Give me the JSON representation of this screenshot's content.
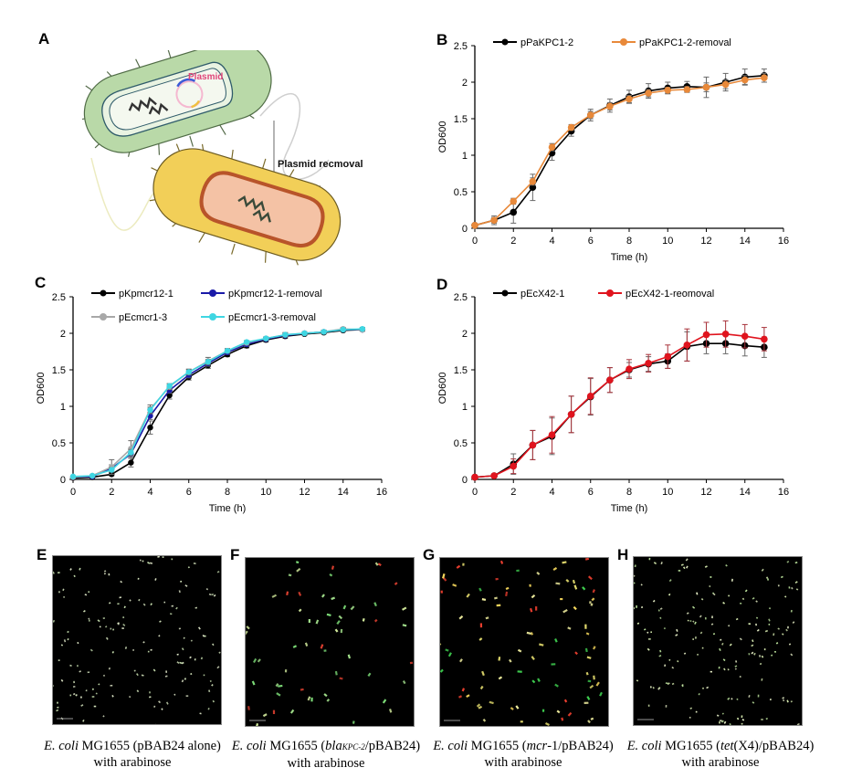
{
  "panel_letters": {
    "a": "A",
    "b": "B",
    "c": "C",
    "d": "D",
    "e": "E",
    "f": "F",
    "g": "G",
    "h": "H"
  },
  "schematic": {
    "plasmid_label": "Plasmid",
    "arrow_label": "Plasmid recmoval",
    "colors": {
      "donor_cell": "#b9d9a8",
      "cured_cell": "#f2cf58",
      "plasmid_text": "#e0457a",
      "cured_inner": "#f4c2a5",
      "cured_wall": "#b8542a"
    }
  },
  "chart_data": [
    {
      "id": "B",
      "type": "line",
      "title": "",
      "xlabel": "Time (h)",
      "ylabel": "OD600",
      "xlim": [
        0,
        16
      ],
      "ylim": [
        0,
        2.5
      ],
      "xticks": [
        "0",
        "2",
        "4",
        "6",
        "8",
        "10",
        "12",
        "14",
        "16"
      ],
      "yticks": [
        "0",
        "0.5",
        "1",
        "1.5",
        "2",
        "2.5"
      ],
      "grid": false,
      "legend": "top",
      "x": [
        0,
        1,
        2,
        3,
        4,
        5,
        6,
        7,
        8,
        9,
        10,
        11,
        12,
        13,
        14,
        15
      ],
      "series": [
        {
          "name": "pPaKPC1-2",
          "color": "#000000",
          "values": [
            0.04,
            0.11,
            0.22,
            0.56,
            1.03,
            1.33,
            1.55,
            1.68,
            1.8,
            1.88,
            1.92,
            1.94,
            1.93,
            2.0,
            2.07,
            2.09
          ],
          "errors": [
            0.02,
            0.06,
            0.15,
            0.18,
            0.1,
            0.07,
            0.08,
            0.09,
            0.09,
            0.1,
            0.08,
            0.07,
            0.14,
            0.12,
            0.11,
            0.09
          ]
        },
        {
          "name": "pPaKPC1-2-removal",
          "color": "#e8893a",
          "values": [
            0.04,
            0.11,
            0.37,
            0.64,
            1.11,
            1.38,
            1.55,
            1.67,
            1.77,
            1.85,
            1.89,
            1.9,
            1.93,
            1.97,
            2.03,
            2.06
          ],
          "errors": [
            0.02,
            0.04,
            0.04,
            0.05,
            0.05,
            0.04,
            0.05,
            0.05,
            0.05,
            0.05,
            0.04,
            0.04,
            0.06,
            0.06,
            0.06,
            0.06
          ]
        }
      ]
    },
    {
      "id": "C",
      "type": "line",
      "title": "",
      "xlabel": "Time (h)",
      "ylabel": "OD600",
      "xlim": [
        0,
        16
      ],
      "ylim": [
        0,
        2.5
      ],
      "xticks": [
        "0",
        "2",
        "4",
        "6",
        "8",
        "10",
        "12",
        "14",
        "16"
      ],
      "yticks": [
        "0",
        "0.5",
        "1",
        "1.5",
        "2",
        "2.5"
      ],
      "grid": false,
      "legend": "top",
      "x": [
        0,
        1,
        2,
        3,
        4,
        5,
        6,
        7,
        8,
        9,
        10,
        11,
        12,
        13,
        14,
        15
      ],
      "series": [
        {
          "name": "pKpmcr12-1",
          "color": "#000000",
          "values": [
            0.02,
            0.03,
            0.07,
            0.23,
            0.71,
            1.15,
            1.4,
            1.56,
            1.71,
            1.83,
            1.91,
            1.96,
            1.99,
            2.01,
            2.04,
            2.05
          ],
          "errors": [
            0.01,
            0.01,
            0.02,
            0.06,
            0.09,
            0.05,
            0.04,
            0.04,
            0.03,
            0.03,
            0.03,
            0.03,
            0.02,
            0.02,
            0.02,
            0.02
          ]
        },
        {
          "name": "pKpmcr12-1-removal",
          "color": "#1a1aa8",
          "values": [
            0.03,
            0.04,
            0.15,
            0.35,
            0.87,
            1.22,
            1.43,
            1.59,
            1.74,
            1.85,
            1.92,
            1.97,
            2.0,
            2.02,
            2.05,
            2.05
          ],
          "errors": [
            0.01,
            0.01,
            0.05,
            0.06,
            0.05,
            0.04,
            0.04,
            0.04,
            0.03,
            0.03,
            0.02,
            0.02,
            0.02,
            0.02,
            0.02,
            0.02
          ]
        },
        {
          "name": "pEcmcr1-3",
          "color": "#a8a8a8",
          "values": [
            0.03,
            0.05,
            0.17,
            0.42,
            0.96,
            1.27,
            1.47,
            1.62,
            1.76,
            1.87,
            1.93,
            1.98,
            2.0,
            2.02,
            2.06,
            2.05
          ],
          "errors": [
            0.01,
            0.01,
            0.1,
            0.11,
            0.06,
            0.04,
            0.04,
            0.05,
            0.03,
            0.03,
            0.02,
            0.03,
            0.02,
            0.02,
            0.02,
            0.02
          ]
        },
        {
          "name": "pEcmcr1-3-removal",
          "color": "#3fd6e2",
          "values": [
            0.04,
            0.05,
            0.13,
            0.37,
            0.95,
            1.28,
            1.47,
            1.61,
            1.76,
            1.88,
            1.93,
            1.98,
            2.0,
            2.02,
            2.05,
            2.06
          ],
          "errors": [
            0.01,
            0.01,
            0.03,
            0.04,
            0.04,
            0.03,
            0.03,
            0.03,
            0.03,
            0.02,
            0.02,
            0.02,
            0.02,
            0.02,
            0.02,
            0.02
          ]
        }
      ]
    },
    {
      "id": "D",
      "type": "line",
      "title": "",
      "xlabel": "Time (h)",
      "ylabel": "OD600",
      "xlim": [
        0,
        16
      ],
      "ylim": [
        0,
        2.5
      ],
      "xticks": [
        "0",
        "2",
        "4",
        "6",
        "8",
        "10",
        "12",
        "14",
        "16"
      ],
      "yticks": [
        "0",
        "0.5",
        "1",
        "1.5",
        "2",
        "2.5"
      ],
      "grid": false,
      "legend": "top",
      "x": [
        0,
        1,
        2,
        3,
        4,
        5,
        6,
        7,
        8,
        9,
        10,
        11,
        12,
        13,
        14,
        15
      ],
      "series": [
        {
          "name": "pEcX42-1",
          "color": "#000000",
          "values": [
            0.03,
            0.05,
            0.21,
            0.47,
            0.59,
            0.89,
            1.13,
            1.36,
            1.5,
            1.58,
            1.62,
            1.82,
            1.86,
            1.86,
            1.83,
            1.81
          ],
          "errors": [
            0.01,
            0.02,
            0.14,
            0.2,
            0.25,
            0.25,
            0.25,
            0.17,
            0.1,
            0.1,
            0.1,
            0.2,
            0.14,
            0.14,
            0.14,
            0.14
          ]
        },
        {
          "name": "pEcX42-1-reomoval",
          "color": "#e0141e",
          "values": [
            0.03,
            0.05,
            0.18,
            0.47,
            0.61,
            0.89,
            1.14,
            1.36,
            1.51,
            1.59,
            1.68,
            1.84,
            1.98,
            1.99,
            1.96,
            1.92
          ],
          "errors": [
            0.01,
            0.02,
            0.1,
            0.2,
            0.25,
            0.25,
            0.25,
            0.17,
            0.13,
            0.12,
            0.16,
            0.22,
            0.17,
            0.18,
            0.16,
            0.16
          ]
        }
      ]
    }
  ],
  "micrographs": [
    {
      "id": "E",
      "caption_italic": "E. coli",
      "caption_rest": " MG1655 (pBAB24 alone)",
      "caption_line2": "with arabinose",
      "cell_colors": [
        "#e8f0d0",
        "#d8e8c0",
        "#c8e0b0"
      ],
      "cell_size": "small",
      "cell_count": 150,
      "seed": 11
    },
    {
      "id": "F",
      "caption_italic": "E. coli",
      "caption_pre": " MG1655 (",
      "caption_gene_italic": "bla",
      "caption_gene_sub": "KPC-2",
      "caption_post": "/pBAB24)",
      "caption_line2": "with arabinose",
      "cell_colors": [
        "#7fe07a",
        "#a8e890",
        "#d8f0a0",
        "#e04030"
      ],
      "cell_size": "medium",
      "cell_count": 60,
      "seed": 23
    },
    {
      "id": "G",
      "caption_italic": "E. coli",
      "caption_pre": " MG1655 (",
      "caption_gene_italic": "mcr",
      "caption_post": "-1/pBAB24)",
      "caption_line2": "with arabinose",
      "cell_colors": [
        "#f2f0a0",
        "#e8e070",
        "#f04030",
        "#3fd050",
        "#ffe060"
      ],
      "cell_size": "medium",
      "cell_count": 95,
      "seed": 37
    },
    {
      "id": "H",
      "caption_italic": "E. coli",
      "caption_pre": " MG1655 (",
      "caption_gene_italic": "tet",
      "caption_post": "(X4)/pBAB24)",
      "caption_line2": "with arabinose",
      "cell_colors": [
        "#e8f0c8",
        "#d8ecb0",
        "#c0e8a0"
      ],
      "cell_size": "small",
      "cell_count": 170,
      "seed": 53
    }
  ]
}
